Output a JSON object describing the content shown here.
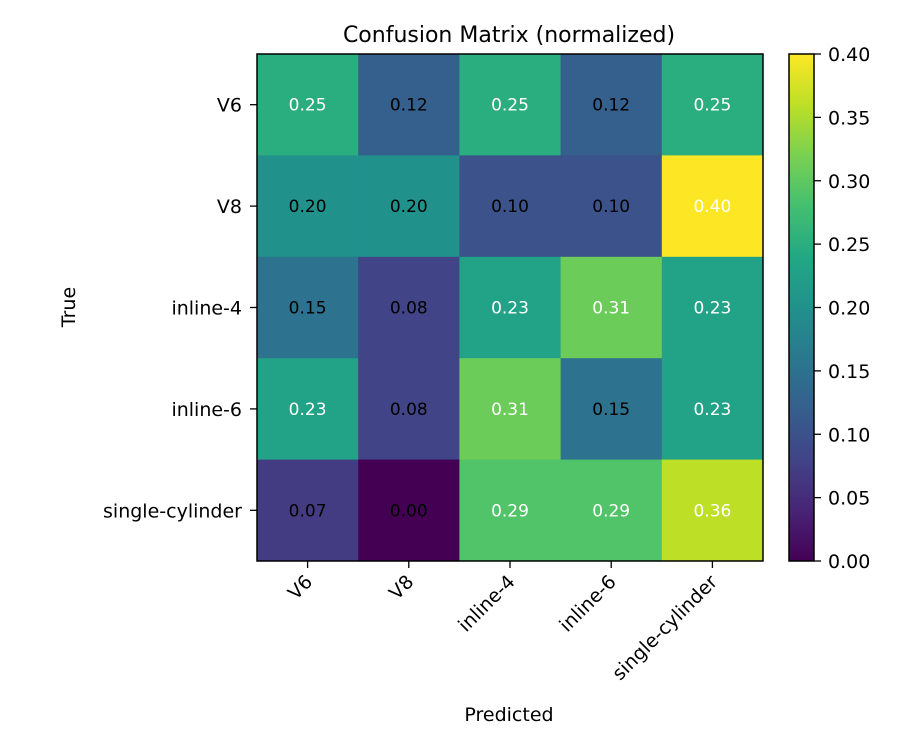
{
  "chart_data": {
    "type": "heatmap",
    "title": "Confusion Matrix (normalized)",
    "xlabel": "Predicted",
    "ylabel": "True",
    "x_categories": [
      "V6",
      "V8",
      "inline-4",
      "inline-6",
      "single-cylinder"
    ],
    "y_categories": [
      "V6",
      "V8",
      "inline-4",
      "inline-6",
      "single-cylinder"
    ],
    "values": [
      [
        0.25,
        0.12,
        0.25,
        0.12,
        0.25
      ],
      [
        0.2,
        0.2,
        0.1,
        0.1,
        0.4
      ],
      [
        0.15,
        0.08,
        0.23,
        0.31,
        0.23
      ],
      [
        0.23,
        0.08,
        0.31,
        0.15,
        0.23
      ],
      [
        0.07,
        0.0,
        0.29,
        0.29,
        0.36
      ]
    ],
    "value_labels": [
      [
        "0.25",
        "0.12",
        "0.25",
        "0.12",
        "0.25"
      ],
      [
        "0.20",
        "0.20",
        "0.10",
        "0.10",
        "0.40"
      ],
      [
        "0.15",
        "0.08",
        "0.23",
        "0.31",
        "0.23"
      ],
      [
        "0.23",
        "0.08",
        "0.31",
        "0.15",
        "0.23"
      ],
      [
        "0.07",
        "0.00",
        "0.29",
        "0.29",
        "0.36"
      ]
    ],
    "colormap": "viridis",
    "colorbar": {
      "range": [
        0.0,
        0.4
      ],
      "ticks": [
        0.0,
        0.05,
        0.1,
        0.15,
        0.2,
        0.25,
        0.3,
        0.35,
        0.4
      ],
      "tick_labels": [
        "0.00",
        "0.05",
        "0.10",
        "0.15",
        "0.20",
        "0.25",
        "0.30",
        "0.35",
        "0.40"
      ]
    },
    "text_colors": {
      "light": "#ffffff",
      "dark": "#000000"
    },
    "grid": false
  }
}
